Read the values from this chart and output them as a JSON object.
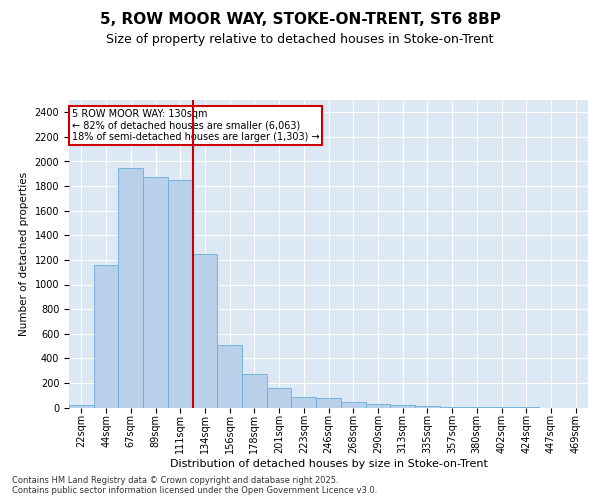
{
  "title1": "5, ROW MOOR WAY, STOKE-ON-TRENT, ST6 8BP",
  "title2": "Size of property relative to detached houses in Stoke-on-Trent",
  "xlabel": "Distribution of detached houses by size in Stoke-on-Trent",
  "ylabel": "Number of detached properties",
  "categories": [
    "22sqm",
    "44sqm",
    "67sqm",
    "89sqm",
    "111sqm",
    "134sqm",
    "156sqm",
    "178sqm",
    "201sqm",
    "223sqm",
    "246sqm",
    "268sqm",
    "290sqm",
    "313sqm",
    "335sqm",
    "357sqm",
    "380sqm",
    "402sqm",
    "424sqm",
    "447sqm",
    "469sqm"
  ],
  "values": [
    18,
    1160,
    1950,
    1870,
    1850,
    1250,
    510,
    270,
    155,
    85,
    75,
    45,
    30,
    20,
    15,
    8,
    3,
    2,
    1,
    0,
    0
  ],
  "bar_color": "#b8d0ea",
  "bar_edge_color": "#6aaed6",
  "vline_color": "#cc0000",
  "vline_pos": 4.5,
  "annotation_text": "5 ROW MOOR WAY: 130sqm\n← 82% of detached houses are smaller (6,063)\n18% of semi-detached houses are larger (1,303) →",
  "annotation_box_edgecolor": "#cc0000",
  "ylim": [
    0,
    2500
  ],
  "yticks": [
    0,
    200,
    400,
    600,
    800,
    1000,
    1200,
    1400,
    1600,
    1800,
    2000,
    2200,
    2400
  ],
  "background_color": "#dce9f5",
  "footer_text": "Contains HM Land Registry data © Crown copyright and database right 2025.\nContains public sector information licensed under the Open Government Licence v3.0.",
  "title1_fontsize": 11,
  "title2_fontsize": 9,
  "xlabel_fontsize": 8,
  "ylabel_fontsize": 7.5,
  "tick_fontsize": 7,
  "annotation_fontsize": 7,
  "footer_fontsize": 6
}
